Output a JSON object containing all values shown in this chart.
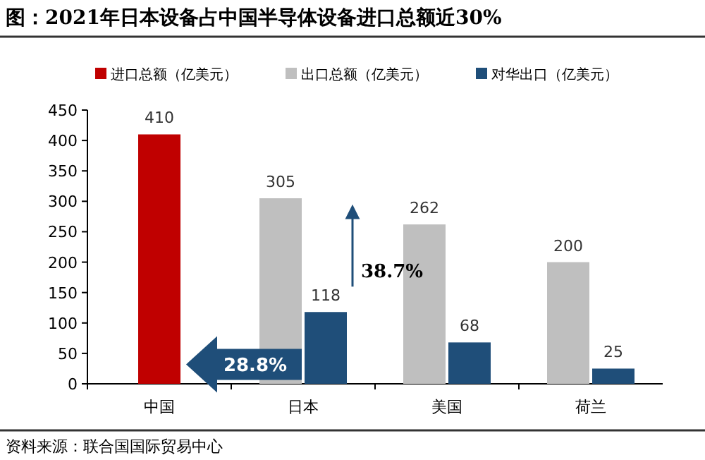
{
  "chart_data": {
    "type": "bar",
    "title": "图：2021年日本设备占中国半导体设备进口总额近30%",
    "categories": [
      "中国",
      "日本",
      "美国",
      "荷兰"
    ],
    "series": [
      {
        "name": "进口总额（亿美元）",
        "color": "#c00000",
        "values": [
          410,
          null,
          null,
          null
        ]
      },
      {
        "name": "出口总额（亿美元）",
        "color": "#bfbfbf",
        "values": [
          null,
          305,
          262,
          200
        ]
      },
      {
        "name": "对华出口（亿美元）",
        "color": "#1f4e79",
        "values": [
          null,
          118,
          68,
          25
        ]
      }
    ],
    "ylim": [
      0,
      450
    ],
    "yticks": [
      0,
      50,
      100,
      150,
      200,
      250,
      300,
      350,
      400,
      450
    ],
    "legend": "top",
    "data_labels": true,
    "annotations": [
      "28.8%",
      "38.7%",
      "资料来源：联合国国际贸易中心"
    ]
  }
}
